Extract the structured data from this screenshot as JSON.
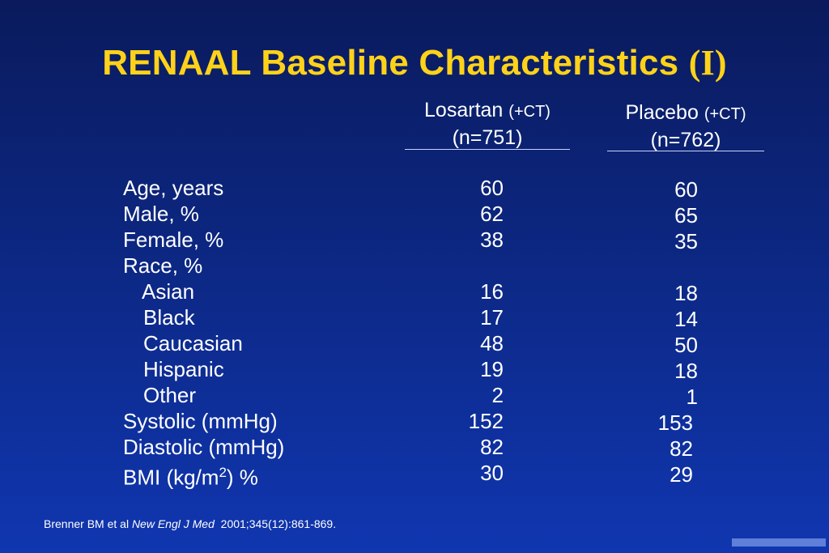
{
  "title": {
    "main": "RENAAL Baseline Characteristics ",
    "suffix": "(I)"
  },
  "columns": [
    {
      "name": "Losartan",
      "qualifier": "(+CT)",
      "n": "(n=751)"
    },
    {
      "name": "Placebo",
      "qualifier": "(+CT)",
      "n": "(n=762)"
    }
  ],
  "rows": [
    {
      "label": "Age, years",
      "losartan": "60",
      "placebo": "60"
    },
    {
      "label": "Male, %",
      "losartan": "62",
      "placebo": "65"
    },
    {
      "label": "Female, %",
      "losartan": "38",
      "placebo": "35"
    },
    {
      "label": "Race, %",
      "losartan": "",
      "placebo": ""
    },
    {
      "label": "Asian",
      "losartan": "16",
      "placebo": "18"
    },
    {
      "label": "Black",
      "losartan": "17",
      "placebo": "14"
    },
    {
      "label": "Caucasian",
      "losartan": "48",
      "placebo": "50"
    },
    {
      "label": "Hispanic",
      "losartan": "19",
      "placebo": "18"
    },
    {
      "label": "Other",
      "losartan": "2",
      "placebo": "1"
    },
    {
      "label": "Systolic (mmHg)",
      "losartan": "152",
      "placebo": "153"
    },
    {
      "label": "Diastolic (mmHg)",
      "losartan": "82",
      "placebo": "82"
    },
    {
      "label_prefix": "BMI (kg/m",
      "label_sup": "2",
      "label_suffix": ") %",
      "losartan": "30",
      "placebo": "29"
    }
  ],
  "citation": {
    "authors": "Brenner BM et al ",
    "journal": "New Engl J  Med",
    "ref": "  2001;345(12):861-869."
  },
  "colors": {
    "title": "#ffd21a",
    "background": "#0d2a8a",
    "text": "#ffffff"
  }
}
